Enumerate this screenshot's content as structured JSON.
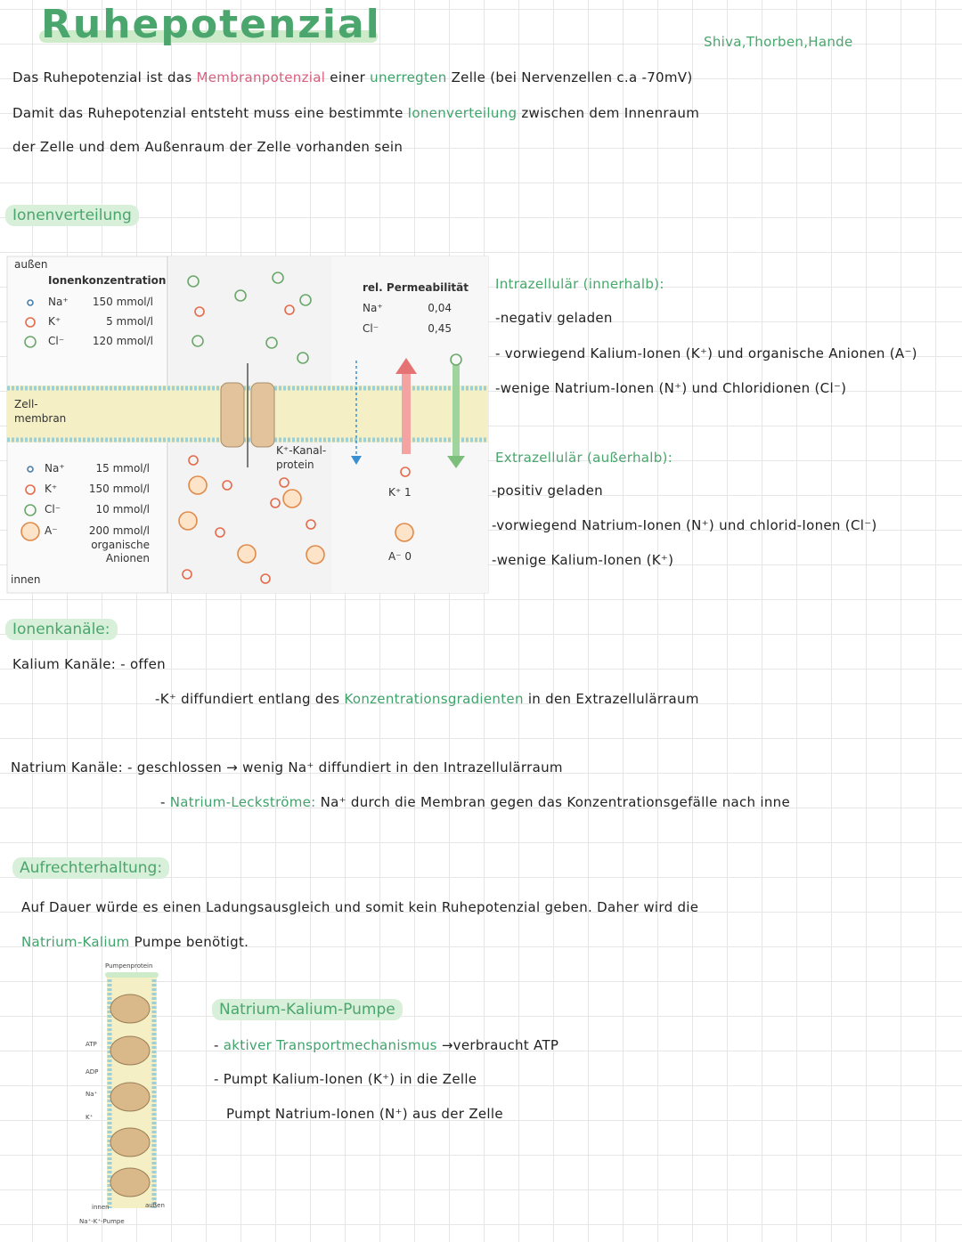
{
  "header": {
    "title": "Ruhepotenzial",
    "authors": "Shiva,Thorben,Hande"
  },
  "intro": [
    [
      "Das Ruhepotenzial ist das ",
      {
        "text": "Membranpotenzial",
        "color": "#d9607e"
      },
      " einer ",
      {
        "text": "unerregten",
        "color": "#3fa36b"
      },
      " Zelle (bei Nervenzellen c.a -70mV)"
    ],
    [
      "Damit das Ruhepotenzial entsteht muss eine bestimmte ",
      {
        "text": "Ionenverteilung",
        "color": "#3fa36b"
      },
      " zwischen dem Innenraum"
    ],
    [
      "der Zelle und dem Außenraum der Zelle vorhanden sein"
    ]
  ],
  "ionenverteilung": {
    "heading": "Ionenverteilung",
    "figure": {
      "outside_label": "außen",
      "conc_heading": "Ionenkonzentration",
      "outside_ions": [
        {
          "ion": "Na⁺",
          "conc": "150 mmol/l"
        },
        {
          "ion": "K⁺",
          "conc": "5 mmol/l"
        },
        {
          "ion": "Cl⁻",
          "conc": "120 mmol/l"
        }
      ],
      "membrane_label": [
        "Zell-",
        "membran"
      ],
      "inside_ions": [
        {
          "ion": "Na⁺",
          "conc": "15 mmol/l"
        },
        {
          "ion": "K⁺",
          "conc": "150 mmol/l"
        },
        {
          "ion": "Cl⁻",
          "conc": "10 mmol/l"
        },
        {
          "ion": "A⁻",
          "conc": "200 mmol/l",
          "note": [
            "organische",
            "Anionen"
          ]
        }
      ],
      "inside_label": "innen",
      "channel_label": [
        "K⁺-Kanal-",
        "protein"
      ],
      "perm_heading": "rel. Permeabilität",
      "perm": [
        {
          "ion": "Na⁺",
          "value": "0,04"
        },
        {
          "ion": "Cl⁻",
          "value": "0,45"
        }
      ],
      "perm_k": "K⁺ 1",
      "perm_a": "A⁻ 0"
    },
    "intra_heading": "Intrazellulär (innerhalb):",
    "intra": [
      "-negativ geladen",
      "- vorwiegend Kalium-Ionen (K⁺) und organische Anionen (A⁻)",
      "-wenige Natrium-Ionen (N⁺) und Chloridionen (Cl⁻)"
    ],
    "extra_heading": "Extrazellulär (außerhalb):",
    "extra": [
      "-positiv geladen",
      "-vorwiegend Natrium-Ionen (N⁺) und chlorid-Ionen (Cl⁻)",
      "-wenige Kalium-Ionen (K⁺)"
    ]
  },
  "ionenkanaele": {
    "heading": "Ionenkanäle:",
    "lines": [
      [
        "Kalium Kanäle: - offen"
      ],
      [
        "-K⁺ diffundiert entlang des ",
        {
          "text": "Konzentrationsgradienten",
          "color": "#3fa36b"
        },
        " in den Extrazellulärraum"
      ],
      [
        "Natrium Kanäle: - geschlossen → wenig Na⁺ diffundiert in den Intrazellulärraum"
      ],
      [
        "- ",
        {
          "text": "Natrium-Leckströme:",
          "color": "#3fa36b"
        },
        " Na⁺ durch die Membran gegen das Konzentrationsgefälle nach inne"
      ]
    ]
  },
  "aufrechterhaltung": {
    "heading": "Aufrechterhaltung:",
    "lines": [
      [
        "Auf Dauer würde es einen Ladungsausgleich und somit kein Ruhepotenzial geben. Daher wird die"
      ],
      [
        {
          "text": "Natrium-Kalium",
          "color": "#3fa36b"
        },
        " Pumpe benötigt."
      ]
    ],
    "figure": {
      "protein": "Pumpenprotein",
      "atp": "ATP",
      "adp": "ADP",
      "na": "Na⁺",
      "k": "K⁺",
      "inside": "innen",
      "outside": "außen",
      "caption": "Na⁺-K⁺-Pumpe"
    },
    "box_heading": "Natrium-Kalium-Pumpe",
    "box": [
      [
        "- ",
        {
          "text": "aktiver Transportmechanismus",
          "color": "#3fa36b"
        },
        " →verbraucht ATP"
      ],
      [
        "- Pumpt Kalium-Ionen (K⁺) in die Zelle"
      ],
      [
        "Pumpt Natrium-Ionen (N⁺) aus der Zelle"
      ]
    ]
  }
}
